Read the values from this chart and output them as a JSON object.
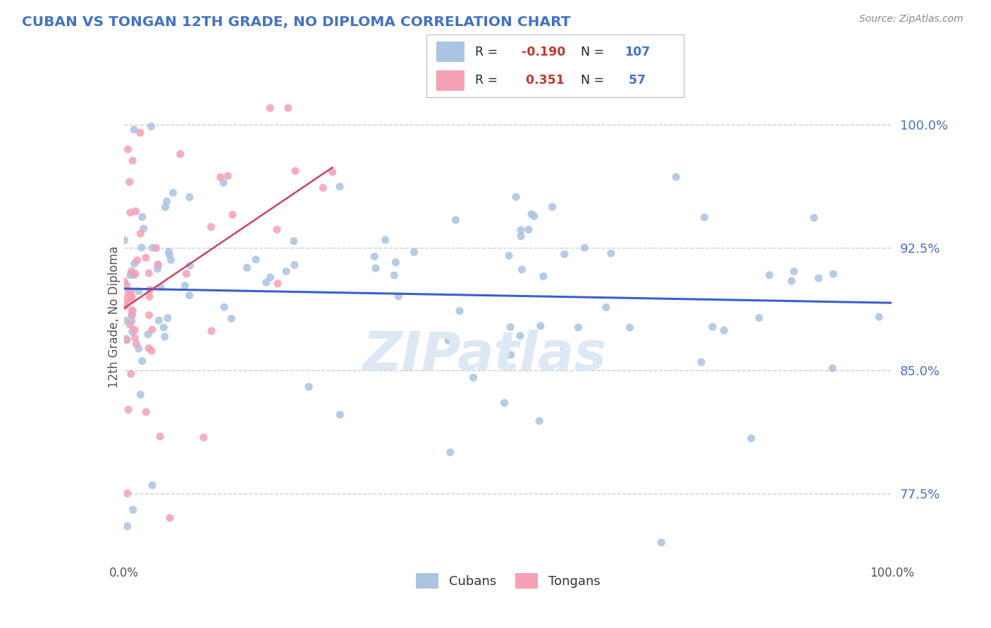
{
  "title": "CUBAN VS TONGAN 12TH GRADE, NO DIPLOMA CORRELATION CHART",
  "source_text": "Source: ZipAtlas.com",
  "ylabel": "12th Grade, No Diploma",
  "ytick_vals": [
    77.5,
    85.0,
    92.5,
    100.0
  ],
  "xlim": [
    0.0,
    100.0
  ],
  "ylim": [
    73.5,
    103.0
  ],
  "cubans_color": "#aac4e2",
  "tongans_color": "#f4a0b5",
  "trend_cubans_color": "#3a5fcd",
  "trend_tongans_color": "#d04060",
  "R_cubans": -0.19,
  "N_cubans": 107,
  "R_tongans": 0.351,
  "N_tongans": 57,
  "title_color": "#4472c4",
  "axis_color": "#4472c4",
  "watermark": "ZIPatlas",
  "legend_blue_color": "#aac4e2",
  "legend_pink_color": "#f4a0b5"
}
